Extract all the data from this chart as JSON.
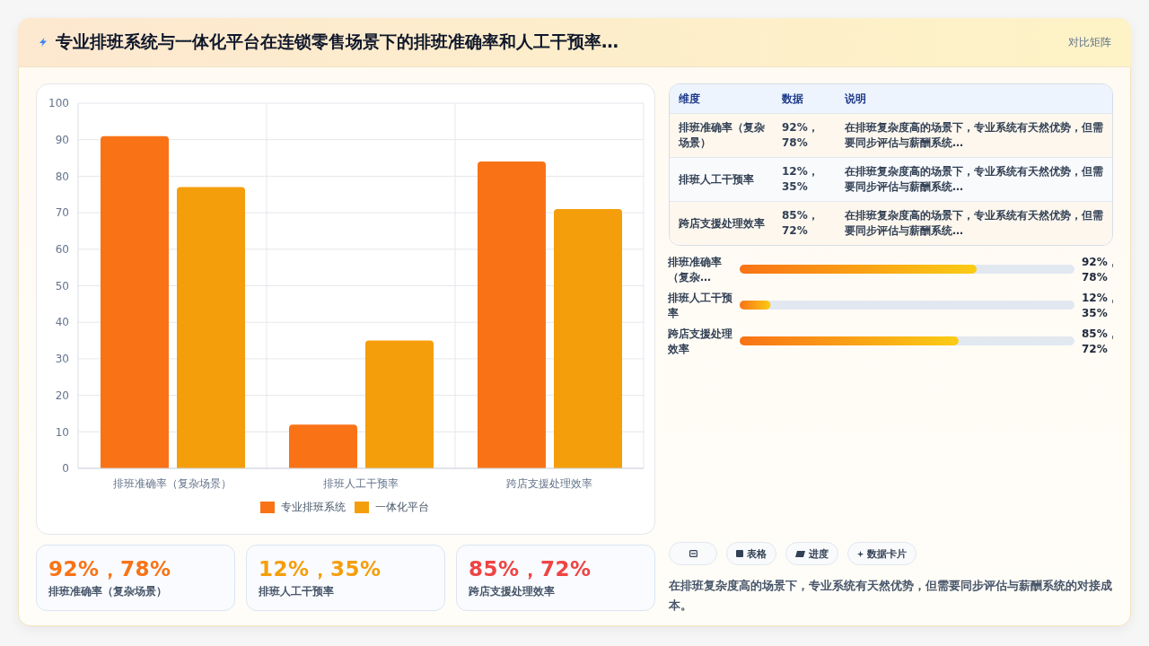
{
  "chart_data": [
    {
      "type": "other",
      "title": "专业排班系统与一体化平台在连锁零售场景下的排班准确率和人工干预率…",
      "annotations": [
        "对比矩阵"
      ]
    },
    {
      "type": "bar",
      "categories": [
        "排班准确率（复杂场景）",
        "排班人工干预率",
        "跨店支援处理效率"
      ],
      "series": [
        {
          "name": "专业排班系统",
          "color": "#f97316",
          "values": [
            91,
            12,
            84
          ]
        },
        {
          "name": "一体化平台",
          "color": "#f59e0b",
          "values": [
            77,
            35,
            71
          ]
        }
      ],
      "ylim": [
        0,
        100
      ],
      "yticks": [
        0,
        10,
        20,
        30,
        40,
        50,
        60,
        70,
        80,
        90,
        100
      ],
      "grid": true,
      "legend": "bottom"
    },
    {
      "type": "other",
      "annotations": [
        "维度",
        "数据",
        "说明",
        "排班准确率（复杂场景）",
        "92%，78%",
        "在排班复杂度高的场景下，专业系统有天然优势，但需要同步评估与薪酬系统…",
        "排班人工干预率",
        "12%，35%",
        "在排班复杂度高的场景下，专业系统有天然优势，但需要同步评估与薪酬系统…",
        "跨店支援处理效率",
        "85%，72%",
        "在排班复杂度高的场景下，专业系统有天然优势，但需要同步评估与薪酬系统…"
      ]
    },
    {
      "type": "bar",
      "orientation": "horizontal",
      "categories": [
        "排班准确率（复杂…",
        "排班人工干预率",
        "跨店支援处理效率"
      ],
      "values": [
        92,
        12,
        85
      ],
      "value_labels": [
        "92%，78%",
        "12%，35%",
        "85%，72%"
      ],
      "color": "#f97316",
      "xlim": [
        0,
        130
      ],
      "tick_labels": "y"
    },
    {
      "type": "other",
      "annotations": [
        "92%，78%",
        "排班准确率（复杂场景）",
        "12%，35%",
        "排班人工干预率",
        "85%，72%",
        "跨店支援处理效率"
      ],
      "colors": [
        "#f97316",
        "#f59e0b",
        "#ef4444"
      ]
    },
    {
      "type": "other",
      "categories": [
        null,
        "表格",
        "进度",
        "数据卡片"
      ],
      "annotations": [
        "在排班复杂度高的场景下，专业系统有天然优势，但需要同步评估与薪酬系统的对接成本。"
      ]
    }
  ]
}
